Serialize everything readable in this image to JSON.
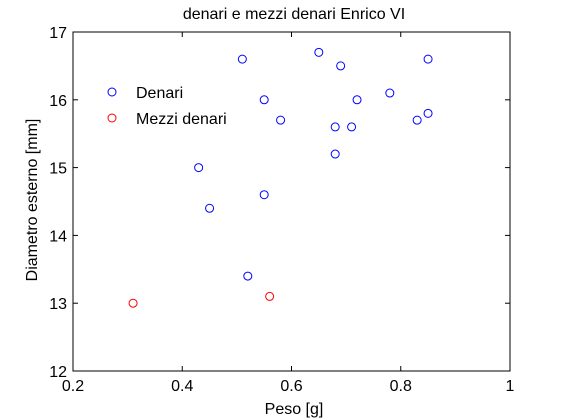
{
  "chart_data": {
    "type": "scatter",
    "title": "denari e mezzi denari Enrico VI",
    "xlabel": "Peso [g]",
    "ylabel": "Diametro esterno  [mm]",
    "xlim": [
      0.2,
      1.0
    ],
    "ylim": [
      12,
      17
    ],
    "xticks": [
      "0.2",
      "0.4",
      "0.6",
      "0.8",
      "1"
    ],
    "yticks": [
      "12",
      "13",
      "14",
      "15",
      "16",
      "17"
    ],
    "xtick_values": [
      0.2,
      0.4,
      0.6,
      0.8,
      1.0
    ],
    "ytick_values": [
      12,
      13,
      14,
      15,
      16,
      17
    ],
    "grid": false,
    "legend_position": "top-left",
    "series": [
      {
        "name": "Denari",
        "color": "#0000ff",
        "marker": "circle-open",
        "points": [
          {
            "x": 0.43,
            "y": 15.0
          },
          {
            "x": 0.45,
            "y": 14.4
          },
          {
            "x": 0.51,
            "y": 16.6
          },
          {
            "x": 0.52,
            "y": 13.4
          },
          {
            "x": 0.55,
            "y": 16.0
          },
          {
            "x": 0.55,
            "y": 14.6
          },
          {
            "x": 0.58,
            "y": 15.7
          },
          {
            "x": 0.65,
            "y": 16.7
          },
          {
            "x": 0.68,
            "y": 15.6
          },
          {
            "x": 0.68,
            "y": 15.2
          },
          {
            "x": 0.69,
            "y": 16.5
          },
          {
            "x": 0.71,
            "y": 15.6
          },
          {
            "x": 0.72,
            "y": 16.0
          },
          {
            "x": 0.78,
            "y": 16.1
          },
          {
            "x": 0.83,
            "y": 15.7
          },
          {
            "x": 0.85,
            "y": 16.6
          },
          {
            "x": 0.85,
            "y": 15.8
          }
        ]
      },
      {
        "name": "Mezzi denari",
        "color": "#ff0000",
        "marker": "circle-open",
        "points": [
          {
            "x": 0.31,
            "y": 13.0
          },
          {
            "x": 0.56,
            "y": 13.1
          }
        ]
      }
    ]
  }
}
